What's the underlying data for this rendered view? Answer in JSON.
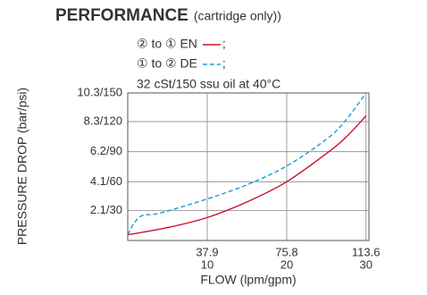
{
  "chart_data": {
    "type": "line",
    "title": "PERFORMANCE",
    "subtitle": "(cartridge only))",
    "annotation": "32 cSt/150 ssu oil at 40°C",
    "legend_suffix": ";",
    "xlabel": "FLOW (lpm/gpm)",
    "ylabel": "PRESSURE DROP (bar/psi)",
    "xlim": [
      0,
      115
    ],
    "ylim": [
      0,
      10.3
    ],
    "xticks": [
      37.9,
      75.8,
      113.6
    ],
    "x2ticks": [
      {
        "value": 37.9,
        "label": "10"
      },
      {
        "value": 75.8,
        "label": "20"
      },
      {
        "value": 113.6,
        "label": "30"
      }
    ],
    "yticks": [
      {
        "value": 2.1,
        "label": "2.1/30"
      },
      {
        "value": 4.1,
        "label": "4.1/60"
      },
      {
        "value": 6.2,
        "label": "6.2/90"
      },
      {
        "value": 8.3,
        "label": "8.3/120"
      },
      {
        "value": 10.3,
        "label": "10.3/150"
      }
    ],
    "grid": true,
    "series": [
      {
        "name": "② to ① EN",
        "color": "#c8102e",
        "dashed": false,
        "x": [
          0,
          19,
          37.9,
          57,
          75.8,
          95,
          104,
          113.6
        ],
        "values": [
          0.4,
          0.9,
          1.6,
          2.7,
          4.1,
          6.1,
          7.2,
          8.7
        ]
      },
      {
        "name": "① to ② DE",
        "color": "#1a9bd7",
        "dashed": true,
        "x": [
          0,
          3,
          7,
          15,
          37.9,
          57,
          75.8,
          95,
          104,
          113.6
        ],
        "values": [
          0.4,
          1.2,
          1.75,
          1.9,
          2.9,
          3.9,
          5.2,
          7.1,
          8.4,
          10.3
        ]
      }
    ]
  }
}
